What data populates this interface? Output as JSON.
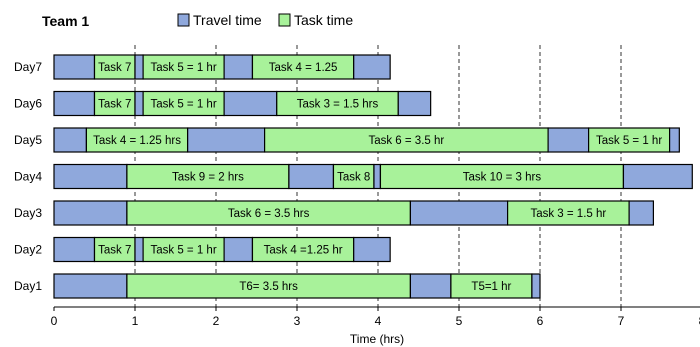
{
  "chart_data": {
    "type": "bar",
    "orientation": "horizontal",
    "stacked": true,
    "title": "Team 1",
    "xlabel": "Time (hrs)",
    "xlim": [
      0,
      8
    ],
    "x_ticks": [
      "0",
      "1",
      "2",
      "3",
      "4",
      "5",
      "6",
      "7",
      "8"
    ],
    "vertical_dashed_gridlines_at": [
      1,
      2,
      3,
      4,
      5,
      6,
      7
    ],
    "legend": {
      "placement": "top",
      "entries": [
        {
          "name": "Travel time",
          "color": "#8fa8dc"
        },
        {
          "name": "Task time",
          "color": "#a8f29a"
        }
      ]
    },
    "categories": [
      "Day7",
      "Day6",
      "Day5",
      "Day4",
      "Day3",
      "Day2",
      "Day1"
    ],
    "rows": [
      {
        "day": "Day7",
        "segments": [
          {
            "kind": "travel",
            "start": 0,
            "end": 0.5
          },
          {
            "kind": "task",
            "start": 0.5,
            "end": 1.0,
            "label": "Task 7"
          },
          {
            "kind": "travel",
            "start": 1.0,
            "end": 1.1
          },
          {
            "kind": "task",
            "start": 1.1,
            "end": 2.1,
            "label": "Task 5 = 1 hr"
          },
          {
            "kind": "travel",
            "start": 2.1,
            "end": 2.45
          },
          {
            "kind": "task",
            "start": 2.45,
            "end": 3.7,
            "label": "Task 4 = 1.25"
          },
          {
            "kind": "travel",
            "start": 3.7,
            "end": 4.15
          }
        ]
      },
      {
        "day": "Day6",
        "segments": [
          {
            "kind": "travel",
            "start": 0,
            "end": 0.5
          },
          {
            "kind": "task",
            "start": 0.5,
            "end": 1.0,
            "label": "Task 7"
          },
          {
            "kind": "travel",
            "start": 1.0,
            "end": 1.1
          },
          {
            "kind": "task",
            "start": 1.1,
            "end": 2.1,
            "label": "Task 5 = 1 hr"
          },
          {
            "kind": "travel",
            "start": 2.1,
            "end": 2.75
          },
          {
            "kind": "task",
            "start": 2.75,
            "end": 4.25,
            "label": "Task 3 = 1.5 hrs"
          },
          {
            "kind": "travel",
            "start": 4.25,
            "end": 4.65
          }
        ]
      },
      {
        "day": "Day5",
        "segments": [
          {
            "kind": "travel",
            "start": 0,
            "end": 0.4
          },
          {
            "kind": "task",
            "start": 0.4,
            "end": 1.65,
            "label": "Task 4 = 1.25 hrs"
          },
          {
            "kind": "travel",
            "start": 1.65,
            "end": 2.6
          },
          {
            "kind": "task",
            "start": 2.6,
            "end": 6.1,
            "label": "Task 6 = 3.5 hr"
          },
          {
            "kind": "travel",
            "start": 6.1,
            "end": 6.6
          },
          {
            "kind": "task",
            "start": 6.6,
            "end": 7.6,
            "label": "Task 5 = 1 hr"
          },
          {
            "kind": "travel",
            "start": 7.6,
            "end": 7.72
          }
        ]
      },
      {
        "day": "Day4",
        "segments": [
          {
            "kind": "travel",
            "start": 0,
            "end": 0.9
          },
          {
            "kind": "task",
            "start": 0.9,
            "end": 2.9,
            "label": "Task 9 = 2 hrs"
          },
          {
            "kind": "travel",
            "start": 2.9,
            "end": 3.45
          },
          {
            "kind": "task",
            "start": 3.45,
            "end": 3.95,
            "label": "Task 8"
          },
          {
            "kind": "travel",
            "start": 3.95,
            "end": 4.03
          },
          {
            "kind": "task",
            "start": 4.03,
            "end": 7.03,
            "label": "Task 10 = 3 hrs"
          },
          {
            "kind": "travel",
            "start": 7.03,
            "end": 7.88
          }
        ]
      },
      {
        "day": "Day3",
        "segments": [
          {
            "kind": "travel",
            "start": 0,
            "end": 0.9
          },
          {
            "kind": "task",
            "start": 0.9,
            "end": 4.4,
            "label": "Task 6 = 3.5 hrs"
          },
          {
            "kind": "travel",
            "start": 4.4,
            "end": 5.6
          },
          {
            "kind": "task",
            "start": 5.6,
            "end": 7.1,
            "label": "Task 3 = 1.5 hr"
          },
          {
            "kind": "travel",
            "start": 7.1,
            "end": 7.4
          }
        ]
      },
      {
        "day": "Day2",
        "segments": [
          {
            "kind": "travel",
            "start": 0,
            "end": 0.5
          },
          {
            "kind": "task",
            "start": 0.5,
            "end": 1.0,
            "label": "Task 7"
          },
          {
            "kind": "travel",
            "start": 1.0,
            "end": 1.1
          },
          {
            "kind": "task",
            "start": 1.1,
            "end": 2.1,
            "label": "Task 5 = 1 hr"
          },
          {
            "kind": "travel",
            "start": 2.1,
            "end": 2.45
          },
          {
            "kind": "task",
            "start": 2.45,
            "end": 3.7,
            "label": "Task 4 =1.25 hr"
          },
          {
            "kind": "travel",
            "start": 3.7,
            "end": 4.15
          }
        ]
      },
      {
        "day": "Day1",
        "segments": [
          {
            "kind": "travel",
            "start": 0,
            "end": 0.9
          },
          {
            "kind": "task",
            "start": 0.9,
            "end": 4.4,
            "label": "T6= 3.5 hrs"
          },
          {
            "kind": "travel",
            "start": 4.4,
            "end": 4.9
          },
          {
            "kind": "task",
            "start": 4.9,
            "end": 5.9,
            "label": "T5=1 hr"
          },
          {
            "kind": "travel",
            "start": 5.9,
            "end": 6.0
          }
        ]
      }
    ]
  }
}
